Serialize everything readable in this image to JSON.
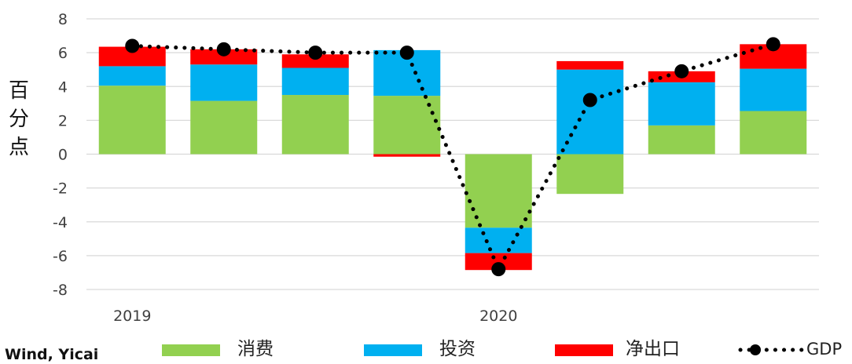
{
  "chart_data": {
    "type": "bar",
    "stacked": true,
    "ylabel": "百分点",
    "ylim": [
      -8,
      8
    ],
    "yticks": [
      8,
      6,
      4,
      2,
      0,
      -2,
      -4,
      -6,
      -8
    ],
    "grid": true,
    "x_tick_labels": [
      {
        "label": "2019",
        "index": 0
      },
      {
        "label": "2020",
        "index": 4
      }
    ],
    "series": [
      {
        "name": "消费",
        "color": "#92d050",
        "values": [
          4.05,
          3.15,
          3.5,
          3.45,
          -4.35,
          -2.35,
          1.7,
          2.55
        ]
      },
      {
        "name": "投资",
        "color": "#00b0f0",
        "values": [
          1.15,
          2.15,
          1.6,
          2.7,
          -1.5,
          5.0,
          2.55,
          2.5
        ]
      },
      {
        "name": "净出口",
        "color": "#ff0000",
        "values": [
          1.15,
          0.9,
          0.8,
          -0.15,
          -1.0,
          0.5,
          0.65,
          1.45
        ]
      }
    ],
    "line_series": {
      "name": "GDP",
      "color": "#000000",
      "values": [
        6.4,
        6.2,
        6.0,
        6.0,
        -6.8,
        3.2,
        4.9,
        6.5
      ]
    },
    "legend_position": "bottom",
    "source": "Wind, Yicai"
  }
}
